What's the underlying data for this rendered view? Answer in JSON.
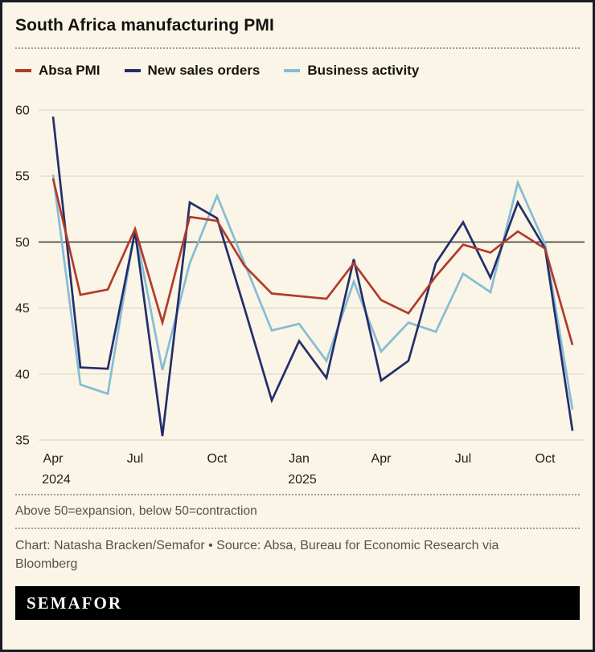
{
  "chart_data": {
    "type": "line",
    "title": "South Africa manufacturing PMI",
    "x": [
      "Apr 2024",
      "May 2024",
      "Jun 2024",
      "Jul 2024",
      "Aug 2024",
      "Sep 2024",
      "Oct 2024",
      "Nov 2024",
      "Dec 2024",
      "Jan 2025",
      "Feb 2025",
      "Mar 2025",
      "Apr 2025",
      "May 2025",
      "Jun 2025",
      "Jul 2025",
      "Aug 2025",
      "Sep 2025",
      "Oct 2025",
      "Nov 2025"
    ],
    "series": [
      {
        "name": "Absa PMI",
        "color": "#b23a2c",
        "values": [
          54.8,
          46.0,
          46.4,
          51.0,
          43.9,
          51.9,
          51.6,
          48.2,
          46.1,
          45.9,
          45.7,
          48.4,
          45.6,
          44.6,
          47.4,
          49.8,
          49.2,
          50.8,
          49.5,
          42.2
        ]
      },
      {
        "name": "New sales orders",
        "color": "#232e6b",
        "values": [
          59.5,
          40.5,
          40.4,
          50.8,
          35.3,
          53.0,
          51.8,
          45.0,
          38.0,
          42.5,
          39.7,
          48.7,
          39.5,
          41.0,
          48.4,
          51.5,
          47.3,
          53.0,
          49.5,
          35.7
        ]
      },
      {
        "name": "Business activity",
        "color": "#85bcd6",
        "values": [
          55.1,
          39.2,
          38.5,
          51.0,
          40.3,
          48.4,
          53.5,
          48.4,
          43.3,
          43.8,
          41.0,
          47.0,
          41.7,
          43.9,
          43.2,
          47.6,
          46.2,
          54.5,
          49.8,
          37.3
        ]
      }
    ],
    "ylim": [
      35,
      60
    ],
    "yticks": [
      60,
      55,
      50,
      45,
      40,
      35
    ],
    "xticks": [
      {
        "index": 0,
        "label": "Apr",
        "sub": "2024"
      },
      {
        "index": 3,
        "label": "Jul"
      },
      {
        "index": 6,
        "label": "Oct"
      },
      {
        "index": 9,
        "label": "Jan",
        "sub": "2025"
      },
      {
        "index": 12,
        "label": "Apr"
      },
      {
        "index": 15,
        "label": "Jul"
      },
      {
        "index": 18,
        "label": "Oct"
      }
    ],
    "reference_line": 50,
    "grid": "horizontal",
    "legend_position": "top-left"
  },
  "notes": {
    "threshold": "Above 50=expansion, below 50=contraction",
    "credit": "Chart: Natasha Bracken/Semafor • Source: Absa, Bureau for Economic Research via Bloomberg"
  },
  "logo_text": "SEMAFOR",
  "colors": {
    "background": "#faf5e6",
    "frame": "#181c27",
    "gridline": "#dcd8c6",
    "reference_line": "#45423b",
    "text_muted": "#55524a"
  }
}
